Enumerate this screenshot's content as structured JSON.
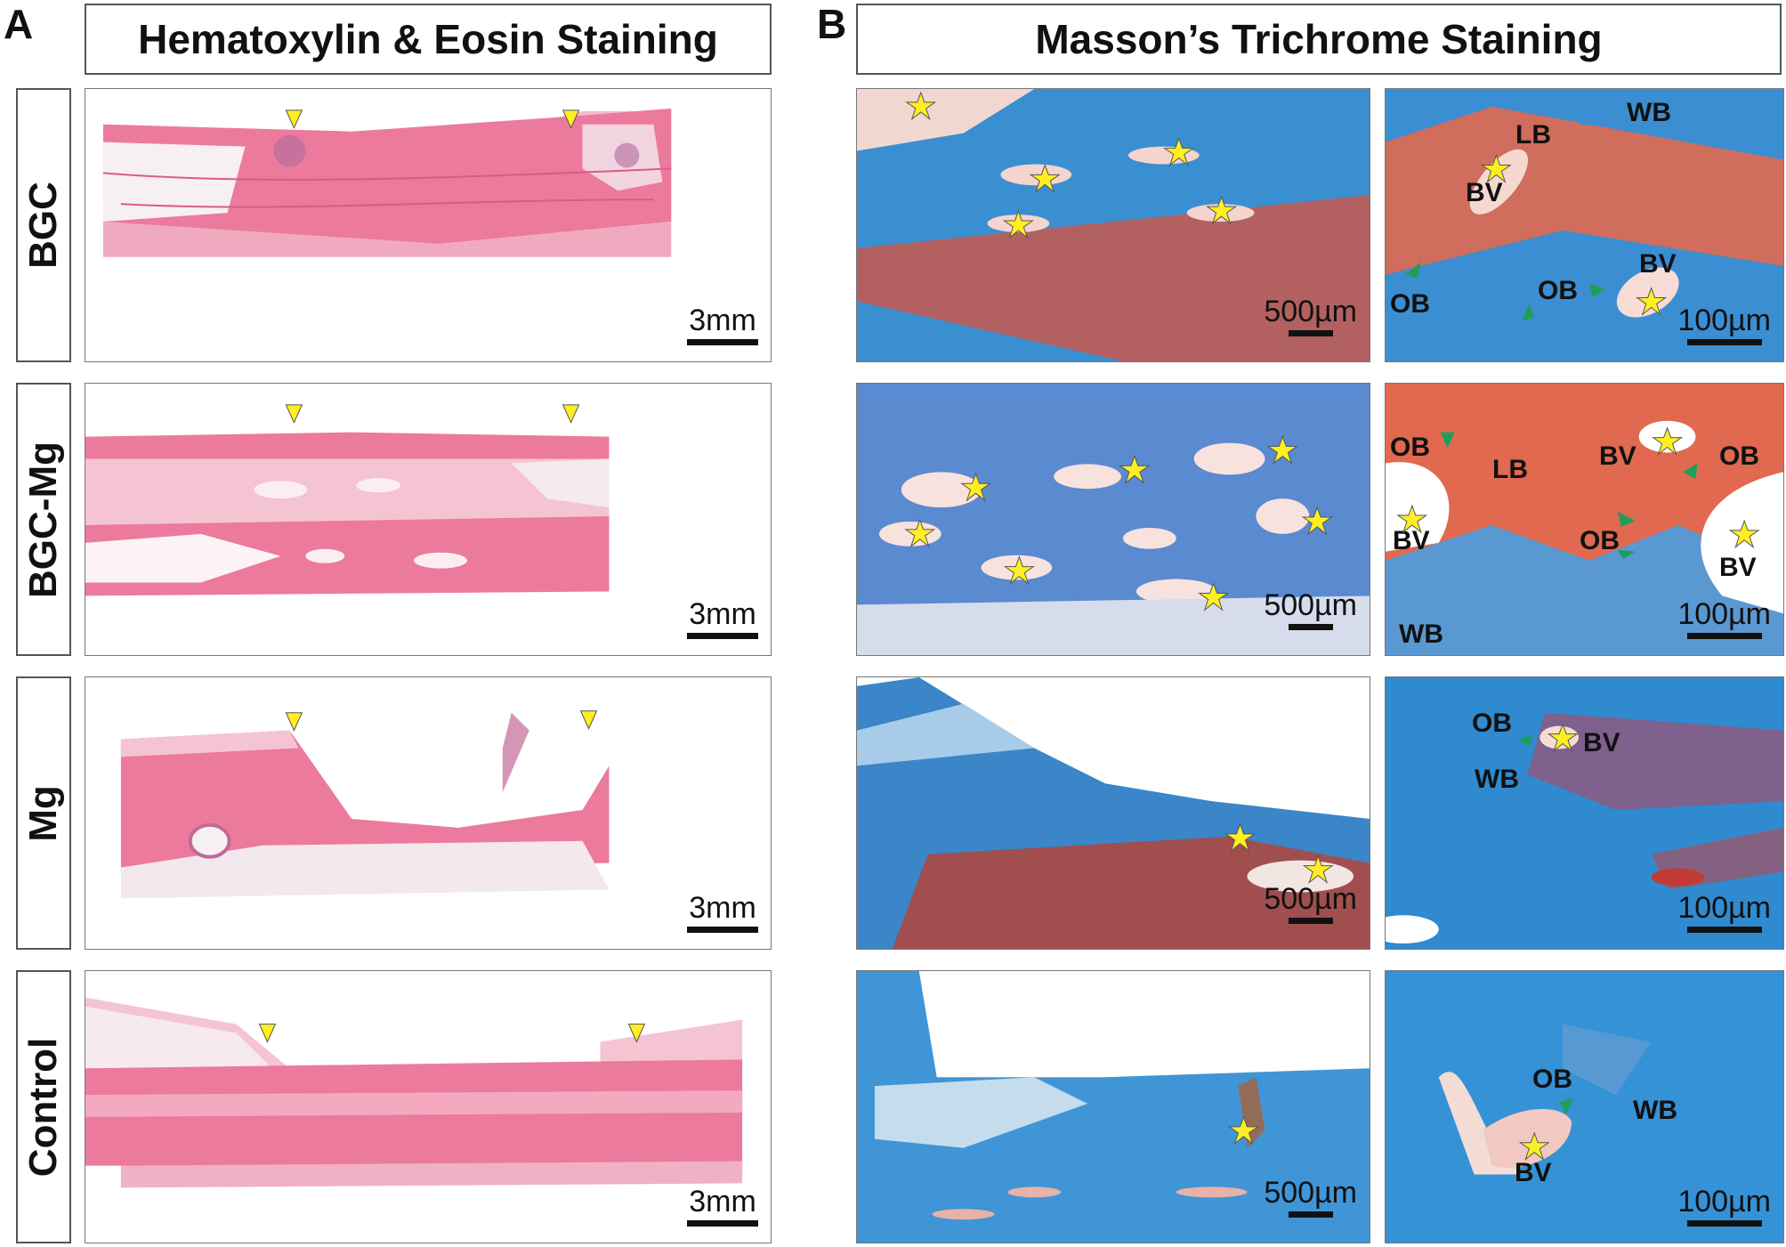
{
  "panel_a_letter": "A",
  "panel_b_letter": "B",
  "panel_a_title": "Hematoxylin & Eosin Staining",
  "panel_b_title": "Masson’s Trichrome Staining",
  "rows": [
    "BGC",
    "BGC-Mg",
    "Mg",
    "Control"
  ],
  "scale_he": "3mm",
  "scale_mt_low": "500µm",
  "scale_mt_high": "100µm",
  "labels": {
    "wb": "WB",
    "lb": "LB",
    "bv": "BV",
    "ob": "OB"
  },
  "colors": {
    "he_tissue": "#ec7a9c",
    "mt_blue": "#3a8fd0",
    "mt_red": "#d8604a",
    "marker_yellow": "#ffee22",
    "arrow_green": "#1f9e5a"
  }
}
